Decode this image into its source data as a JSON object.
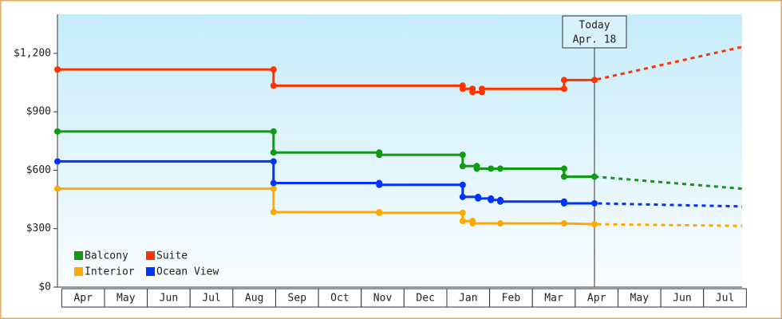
{
  "chart_data": {
    "type": "line",
    "xlim": [
      -0.1,
      15.9
    ],
    "ylim": [
      0,
      1400
    ],
    "yticks": [
      {
        "value": 0,
        "label": "$0"
      },
      {
        "value": 300,
        "label": "$300"
      },
      {
        "value": 600,
        "label": "$600"
      },
      {
        "value": 900,
        "label": "$900"
      },
      {
        "value": 1200,
        "label": "$1,200"
      }
    ],
    "xticks": [
      {
        "value": 0.5,
        "label": "Apr"
      },
      {
        "value": 1.5,
        "label": "May"
      },
      {
        "value": 2.5,
        "label": "Jun"
      },
      {
        "value": 3.5,
        "label": "Jul"
      },
      {
        "value": 4.5,
        "label": "Aug"
      },
      {
        "value": 5.5,
        "label": "Sep"
      },
      {
        "value": 6.5,
        "label": "Oct"
      },
      {
        "value": 7.5,
        "label": "Nov"
      },
      {
        "value": 8.5,
        "label": "Dec"
      },
      {
        "value": 9.5,
        "label": "Jan"
      },
      {
        "value": 10.5,
        "label": "Feb"
      },
      {
        "value": 11.5,
        "label": "Mar"
      },
      {
        "value": 12.5,
        "label": "Apr"
      },
      {
        "value": 13.5,
        "label": "May"
      },
      {
        "value": 14.5,
        "label": "Jun"
      },
      {
        "value": 15.5,
        "label": "Jul"
      }
    ],
    "today": {
      "x": 12.45,
      "label": [
        "Today",
        "Apr. 18"
      ]
    },
    "series": [
      {
        "name": "Balcony",
        "color": "#119911",
        "x": [
          -0.1,
          4.95,
          4.95,
          7.42,
          7.42,
          9.37,
          9.37,
          9.7,
          9.7,
          10.03,
          10.25,
          11.74,
          11.74,
          12.45,
          15.9
        ],
        "values": [
          799,
          799,
          691,
          691,
          679,
          679,
          621,
          621,
          608,
          608,
          608,
          608,
          567,
          567,
          505
        ]
      },
      {
        "name": "Suite",
        "color": "#ff3300",
        "x": [
          -0.1,
          4.95,
          4.95,
          9.37,
          9.37,
          9.6,
          9.6,
          9.82,
          9.82,
          11.74,
          11.74,
          12.45,
          15.9
        ],
        "values": [
          1117,
          1117,
          1034,
          1034,
          1018,
          1018,
          1001,
          1001,
          1018,
          1018,
          1063,
          1063,
          1233
        ]
      },
      {
        "name": "Interior",
        "color": "#ffaa00",
        "x": [
          -0.1,
          4.95,
          4.95,
          7.42,
          7.42,
          9.37,
          9.37,
          9.6,
          9.6,
          10.25,
          11.74,
          12.45,
          15.9
        ],
        "values": [
          505,
          505,
          385,
          385,
          381,
          381,
          339,
          339,
          327,
          327,
          327,
          323,
          314
        ]
      },
      {
        "name": "Ocean View",
        "color": "#0033ff",
        "x": [
          -0.1,
          4.95,
          4.95,
          7.42,
          7.42,
          9.37,
          9.37,
          9.73,
          9.73,
          10.03,
          10.03,
          10.25,
          10.25,
          11.74,
          11.74,
          12.45,
          15.9
        ],
        "values": [
          645,
          645,
          534,
          534,
          525,
          525,
          463,
          463,
          455,
          455,
          447,
          447,
          439,
          439,
          430,
          430,
          414
        ]
      }
    ]
  }
}
